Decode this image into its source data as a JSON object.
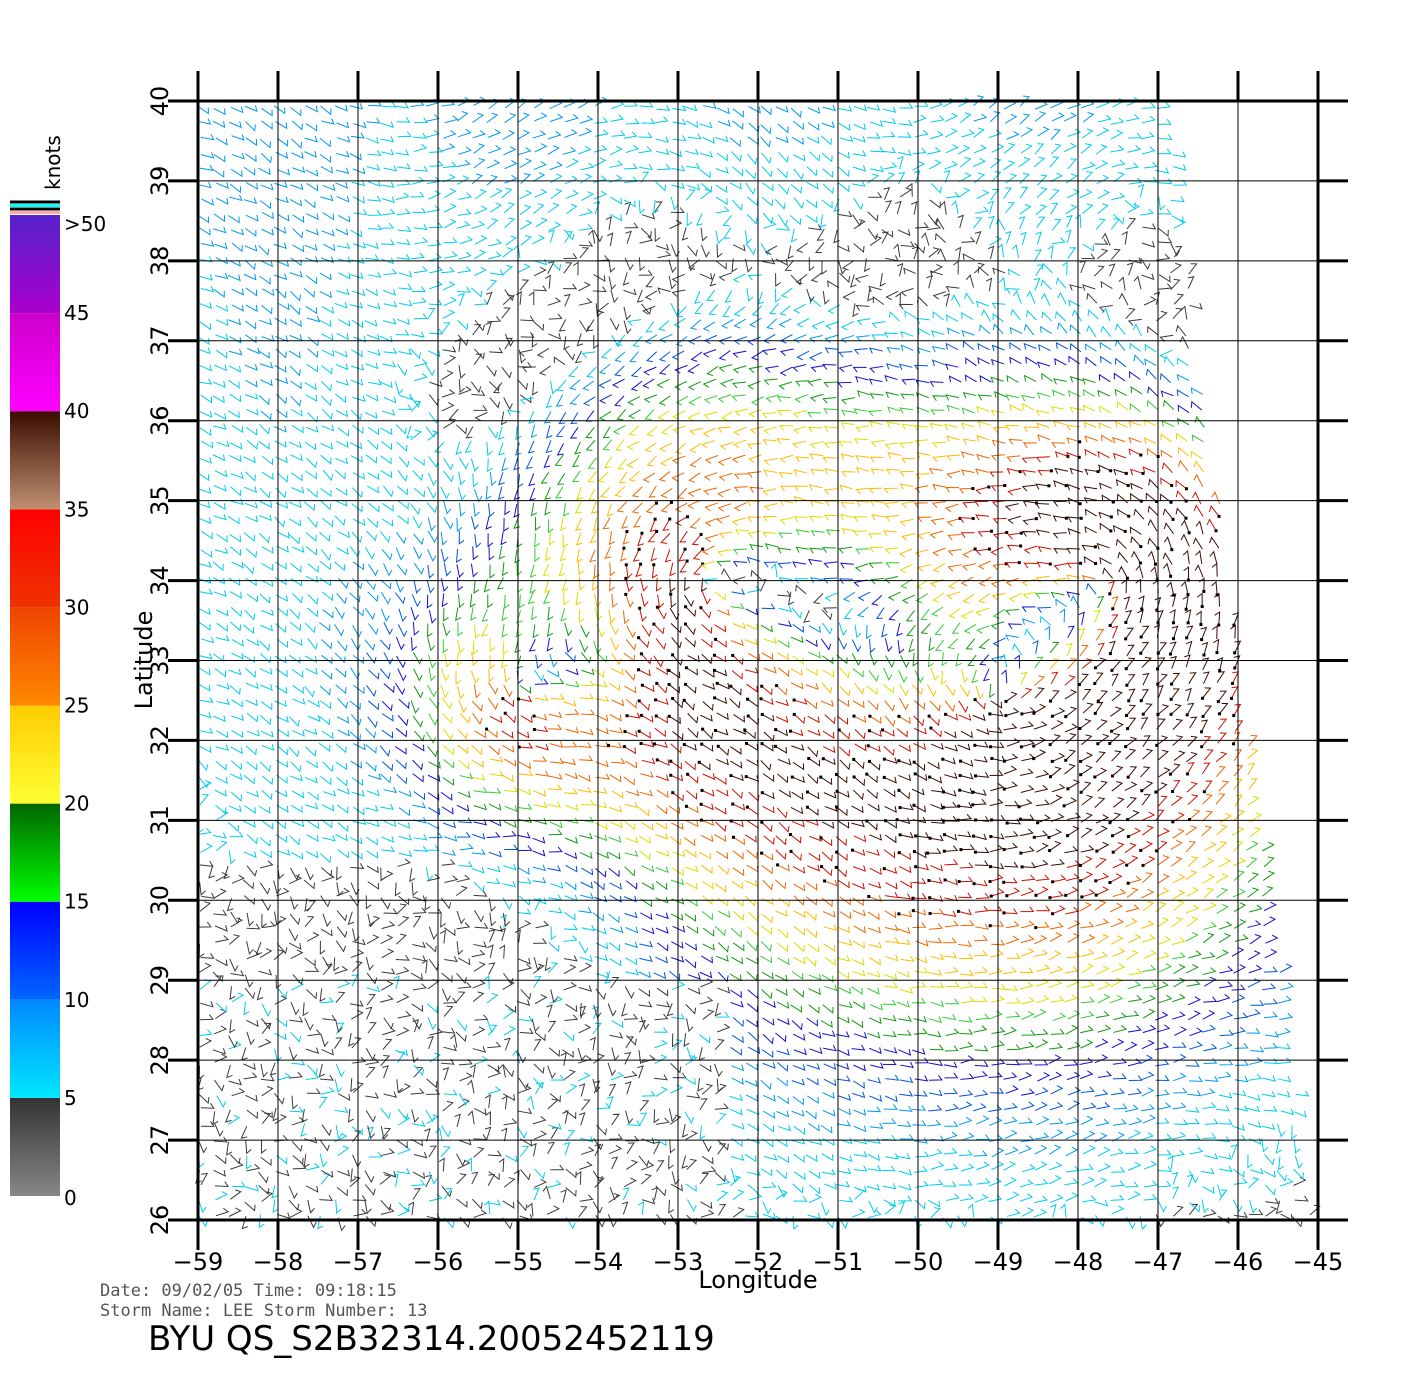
{
  "plot": {
    "xlabel": "Longitude",
    "ylabel": "Latitude",
    "lon_range": [
      -59,
      -45
    ],
    "lat_range": [
      26,
      40
    ],
    "lon_ticks": [
      "−59",
      "−58",
      "−57",
      "−56",
      "−55",
      "−54",
      "−53",
      "−52",
      "−51",
      "−50",
      "−49",
      "−48",
      "−47",
      "−46",
      "−45"
    ],
    "lat_ticks": [
      "26",
      "27",
      "28",
      "29",
      "30",
      "31",
      "32",
      "33",
      "34",
      "35",
      "36",
      "37",
      "38",
      "39",
      "40"
    ],
    "grid": true
  },
  "colorbar": {
    "unit": "knots",
    "tick_labels": [
      "0",
      "5",
      "10",
      "15",
      "20",
      "25",
      "30",
      "35",
      "40",
      "45",
      ">50"
    ],
    "bands": [
      {
        "from": 0,
        "to": 5,
        "top": "#333333",
        "bottom": "#888888"
      },
      {
        "from": 5,
        "to": 10,
        "top": "#0088ff",
        "bottom": "#00e8ff"
      },
      {
        "from": 10,
        "to": 15,
        "top": "#0000ff",
        "bottom": "#0066ff"
      },
      {
        "from": 15,
        "to": 20,
        "top": "#006600",
        "bottom": "#00ff00"
      },
      {
        "from": 20,
        "to": 25,
        "top": "#ffcc00",
        "bottom": "#ffff33"
      },
      {
        "from": 25,
        "to": 30,
        "top": "#ee4400",
        "bottom": "#ff8800"
      },
      {
        "from": 30,
        "to": 35,
        "top": "#ff0000",
        "bottom": "#ee3300"
      },
      {
        "from": 35,
        "to": 40,
        "top": "#3a0c00",
        "bottom": "#c09070"
      },
      {
        "from": 40,
        "to": 45,
        "top": "#cc00cc",
        "bottom": "#ff00ff"
      },
      {
        "from": 45,
        "to": 50,
        "top": "#5522cc",
        "bottom": "#aa00cc"
      }
    ],
    "cap_colors": [
      "#ffaaaa",
      "#000000",
      "#00ffff",
      "#000000"
    ]
  },
  "info": {
    "date_line": "Date: 09/02/05   Time: 09:18:15",
    "storm_line": "Storm  Name: LEE    Storm  Number: 13",
    "file_id": "BYU  QS_S2B32314.20052452119"
  }
}
